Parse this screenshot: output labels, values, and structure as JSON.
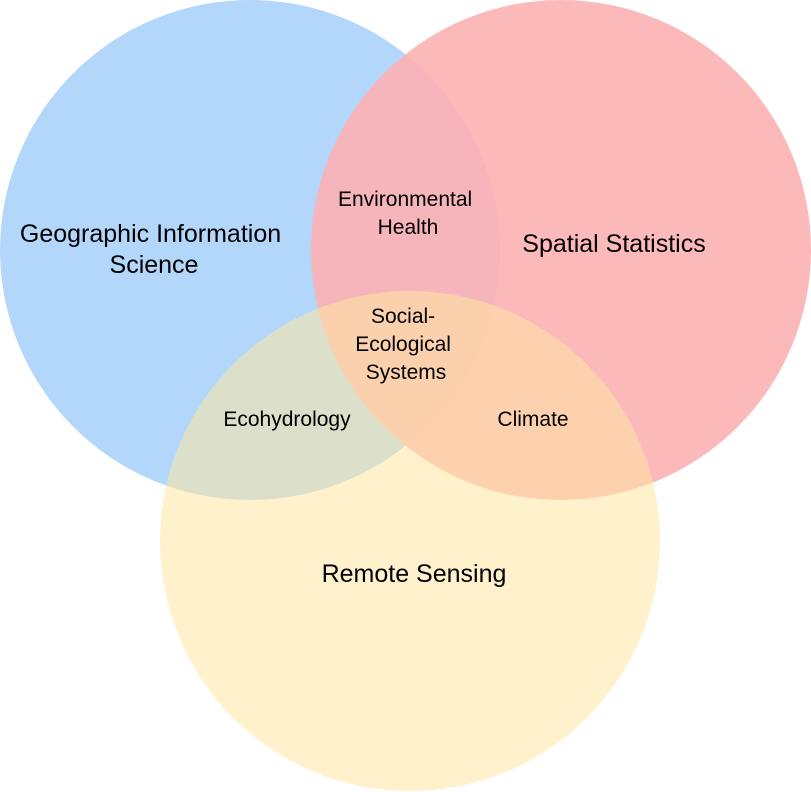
{
  "sets": [
    {
      "key": "gis",
      "lines": [
        "Geographic Information",
        "Science"
      ],
      "color": "#abd3fb"
    },
    {
      "key": "spatial",
      "lines": [
        "Spatial Statistics"
      ],
      "color": "#fcb1b3"
    },
    {
      "key": "remote",
      "lines": [
        "Remote Sensing"
      ],
      "color": "#fde6a3"
    }
  ],
  "intersections": {
    "gis_spatial": [
      "Environmental",
      "Health"
    ],
    "gis_remote": [
      "Ecohydrology"
    ],
    "spatial_remote": [
      "Climate"
    ],
    "all": [
      "Social-",
      "Ecological",
      "Systems"
    ]
  }
}
